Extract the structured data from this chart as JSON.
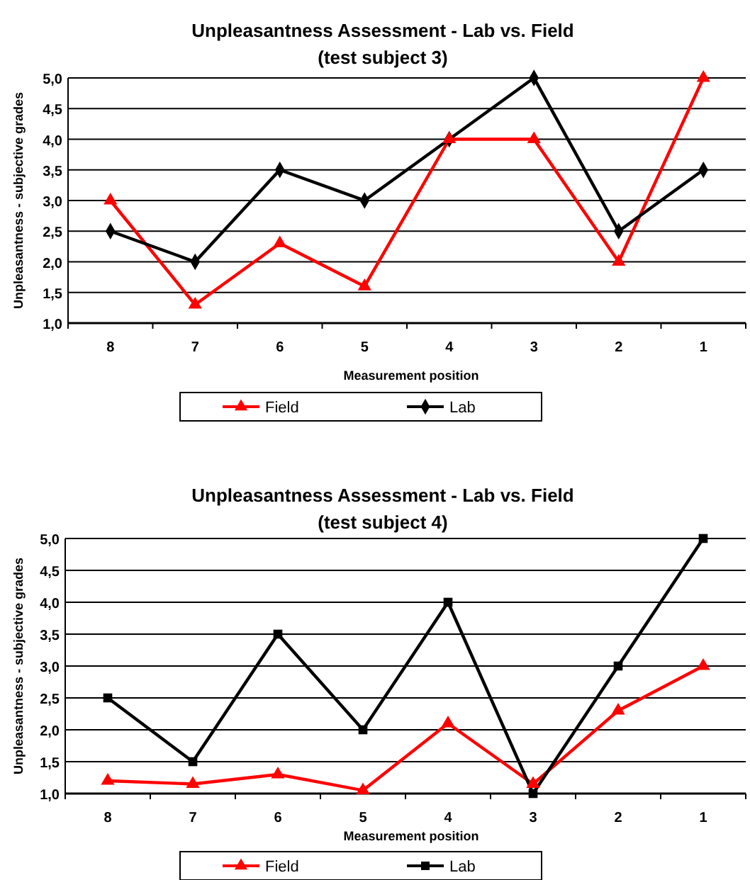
{
  "chart_data": [
    {
      "type": "line",
      "title": "Unpleasantness Assessment - Lab vs. Field",
      "subtitle": "(test subject 3)",
      "xlabel": "Measurement position",
      "ylabel": "Unpleasantness - subjective grades",
      "categories": [
        "8",
        "7",
        "6",
        "5",
        "4",
        "3",
        "2",
        "1"
      ],
      "ylim": [
        1,
        5
      ],
      "yticks": [
        {
          "value": 1,
          "label": "1,0"
        },
        {
          "value": 1.5,
          "label": "1,5"
        },
        {
          "value": 2,
          "label": "2,0"
        },
        {
          "value": 2.5,
          "label": "2,5"
        },
        {
          "value": 3,
          "label": "3,0"
        },
        {
          "value": 3.5,
          "label": "3,5"
        },
        {
          "value": 4,
          "label": "4,0"
        },
        {
          "value": 4.5,
          "label": "4,5"
        },
        {
          "value": 5,
          "label": "5,0"
        }
      ],
      "grid": "y",
      "legend": "bottom",
      "series": [
        {
          "name": "Field",
          "color": "#ff0000",
          "marker": "triangle",
          "values": [
            3.0,
            1.3,
            2.3,
            1.6,
            4.0,
            4.0,
            2.0,
            5.0
          ]
        },
        {
          "name": "Lab",
          "color": "#000000",
          "marker": "diamond",
          "values": [
            2.5,
            2.0,
            3.5,
            3.0,
            4.0,
            5.0,
            2.5,
            3.5
          ]
        }
      ]
    },
    {
      "type": "line",
      "title": "Unpleasantness Assessment - Lab vs. Field",
      "subtitle": "(test subject 4)",
      "xlabel": "Measurement position",
      "ylabel": "Unpleasantness - subjective grades",
      "categories": [
        "8",
        "7",
        "6",
        "5",
        "4",
        "3",
        "2",
        "1"
      ],
      "ylim": [
        1,
        5
      ],
      "yticks": [
        {
          "value": 1,
          "label": "1,0"
        },
        {
          "value": 1.5,
          "label": "1,5"
        },
        {
          "value": 2,
          "label": "2,0"
        },
        {
          "value": 2.5,
          "label": "2,5"
        },
        {
          "value": 3,
          "label": "3,0"
        },
        {
          "value": 3.5,
          "label": "3,5"
        },
        {
          "value": 4,
          "label": "4,0"
        },
        {
          "value": 4.5,
          "label": "4,5"
        },
        {
          "value": 5,
          "label": "5,0"
        }
      ],
      "grid": "y",
      "legend": "bottom",
      "series": [
        {
          "name": "Field",
          "color": "#ff0000",
          "marker": "triangle",
          "values": [
            1.2,
            1.15,
            1.3,
            1.05,
            2.1,
            1.15,
            2.3,
            3.0
          ]
        },
        {
          "name": "Lab",
          "color": "#000000",
          "marker": "square",
          "values": [
            2.5,
            1.5,
            3.5,
            2.0,
            4.0,
            1.0,
            3.0,
            5.0
          ]
        }
      ]
    }
  ]
}
